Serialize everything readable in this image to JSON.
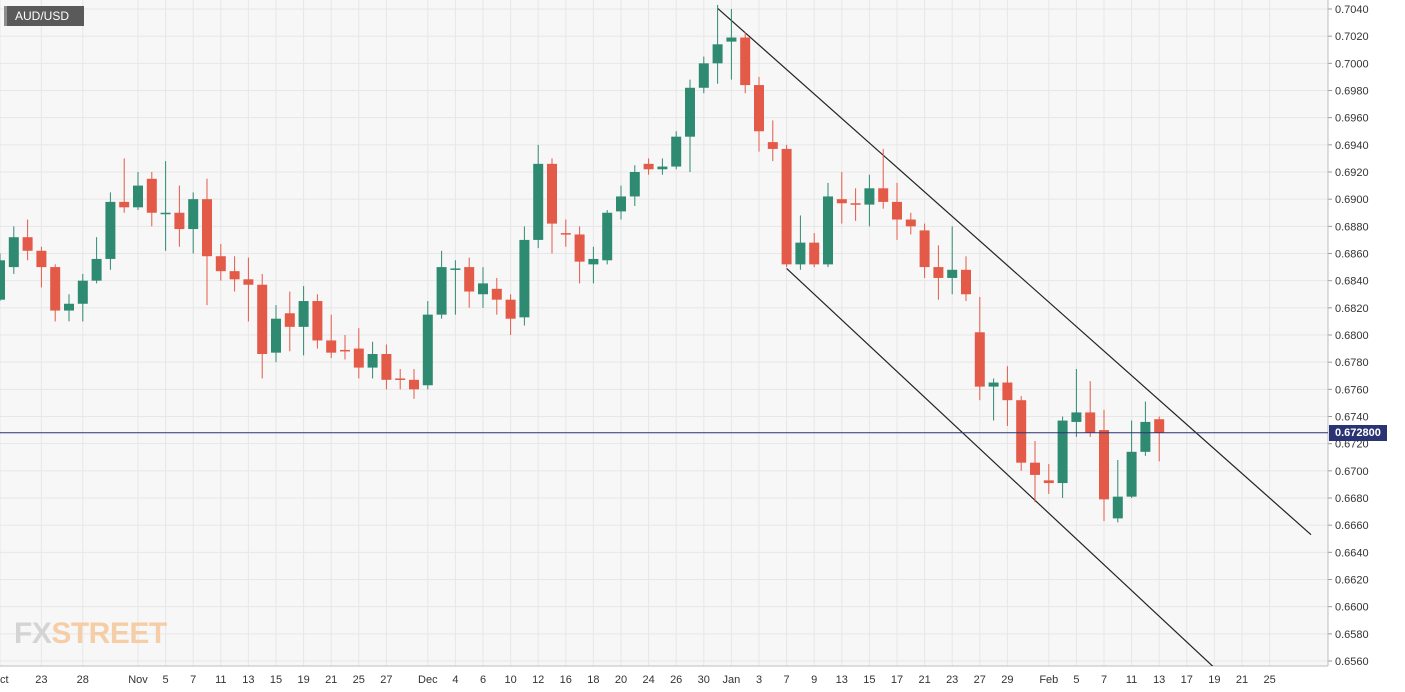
{
  "chart": {
    "symbol_label": "AUD/USD",
    "logo": {
      "fx": "FX",
      "street": "STREET"
    },
    "current_price_label": "0.672800"
  },
  "colors": {
    "up": "#2f8a72",
    "down": "#e35a48",
    "current_line": "#2a3472",
    "grid": "#e7e7e7",
    "plot_bg": "#f7f7f7",
    "axis_text": "#333333",
    "trendline": "#222222"
  },
  "chart_data": {
    "type": "candlestick",
    "ylim": [
      0.656,
      0.704
    ],
    "yticks": [
      "0.7040",
      "0.7020",
      "0.7000",
      "0.6980",
      "0.6960",
      "0.6940",
      "0.6920",
      "0.6900",
      "0.6880",
      "0.6860",
      "0.6840",
      "0.6820",
      "0.6800",
      "0.6780",
      "0.6760",
      "0.6740",
      "0.6720",
      "0.6700",
      "0.6680",
      "0.6660",
      "0.6640",
      "0.6620",
      "0.6600",
      "0.6580",
      "0.6560"
    ],
    "xticks": [
      {
        "label": "Oct",
        "index": 0
      },
      {
        "label": "23",
        "index": 3
      },
      {
        "label": "28",
        "index": 6
      },
      {
        "label": "Nov",
        "index": 10
      },
      {
        "label": "5",
        "index": 12
      },
      {
        "label": "7",
        "index": 14
      },
      {
        "label": "11",
        "index": 16
      },
      {
        "label": "13",
        "index": 18
      },
      {
        "label": "15",
        "index": 20
      },
      {
        "label": "19",
        "index": 22
      },
      {
        "label": "21",
        "index": 24
      },
      {
        "label": "25",
        "index": 26
      },
      {
        "label": "27",
        "index": 28
      },
      {
        "label": "Dec",
        "index": 31
      },
      {
        "label": "4",
        "index": 33
      },
      {
        "label": "6",
        "index": 35
      },
      {
        "label": "10",
        "index": 37
      },
      {
        "label": "12",
        "index": 39
      },
      {
        "label": "16",
        "index": 41
      },
      {
        "label": "18",
        "index": 43
      },
      {
        "label": "20",
        "index": 45
      },
      {
        "label": "24",
        "index": 47
      },
      {
        "label": "26",
        "index": 49
      },
      {
        "label": "30",
        "index": 51
      },
      {
        "label": "Jan",
        "index": 53
      },
      {
        "label": "3",
        "index": 55
      },
      {
        "label": "7",
        "index": 57
      },
      {
        "label": "9",
        "index": 59
      },
      {
        "label": "13",
        "index": 61
      },
      {
        "label": "15",
        "index": 63
      },
      {
        "label": "17",
        "index": 65
      },
      {
        "label": "21",
        "index": 67
      },
      {
        "label": "23",
        "index": 69
      },
      {
        "label": "27",
        "index": 71
      },
      {
        "label": "29",
        "index": 73
      },
      {
        "label": "Feb",
        "index": 76
      },
      {
        "label": "5",
        "index": 78
      },
      {
        "label": "7",
        "index": 80
      },
      {
        "label": "11",
        "index": 82
      },
      {
        "label": "13",
        "index": 84
      },
      {
        "label": "17",
        "index": 86
      },
      {
        "label": "19",
        "index": 88
      },
      {
        "label": "21",
        "index": 90
      },
      {
        "label": "25",
        "index": 92
      }
    ],
    "candles": [
      {
        "o": 0.6826,
        "h": 0.686,
        "l": 0.6825,
        "c": 0.6855
      },
      {
        "o": 0.685,
        "h": 0.688,
        "l": 0.6845,
        "c": 0.6872
      },
      {
        "o": 0.6872,
        "h": 0.6885,
        "l": 0.6855,
        "c": 0.6862
      },
      {
        "o": 0.6862,
        "h": 0.6865,
        "l": 0.6835,
        "c": 0.685
      },
      {
        "o": 0.685,
        "h": 0.6852,
        "l": 0.681,
        "c": 0.6818
      },
      {
        "o": 0.6818,
        "h": 0.683,
        "l": 0.681,
        "c": 0.6823
      },
      {
        "o": 0.6823,
        "h": 0.6845,
        "l": 0.681,
        "c": 0.684
      },
      {
        "o": 0.684,
        "h": 0.6872,
        "l": 0.6838,
        "c": 0.6856
      },
      {
        "o": 0.6856,
        "h": 0.6905,
        "l": 0.6848,
        "c": 0.6898
      },
      {
        "o": 0.6898,
        "h": 0.693,
        "l": 0.689,
        "c": 0.6894
      },
      {
        "o": 0.6894,
        "h": 0.692,
        "l": 0.6892,
        "c": 0.691
      },
      {
        "o": 0.6915,
        "h": 0.692,
        "l": 0.688,
        "c": 0.689
      },
      {
        "o": 0.689,
        "h": 0.6928,
        "l": 0.6862,
        "c": 0.689
      },
      {
        "o": 0.689,
        "h": 0.691,
        "l": 0.6865,
        "c": 0.6878
      },
      {
        "o": 0.6878,
        "h": 0.6905,
        "l": 0.686,
        "c": 0.69
      },
      {
        "o": 0.69,
        "h": 0.6915,
        "l": 0.6822,
        "c": 0.6858
      },
      {
        "o": 0.6858,
        "h": 0.6867,
        "l": 0.684,
        "c": 0.6847
      },
      {
        "o": 0.6847,
        "h": 0.6858,
        "l": 0.6832,
        "c": 0.6841
      },
      {
        "o": 0.6841,
        "h": 0.6857,
        "l": 0.681,
        "c": 0.6837
      },
      {
        "o": 0.6837,
        "h": 0.6845,
        "l": 0.6768,
        "c": 0.6786
      },
      {
        "o": 0.6787,
        "h": 0.6822,
        "l": 0.678,
        "c": 0.6812
      },
      {
        "o": 0.6816,
        "h": 0.6832,
        "l": 0.6788,
        "c": 0.6806
      },
      {
        "o": 0.6806,
        "h": 0.6836,
        "l": 0.6785,
        "c": 0.6825
      },
      {
        "o": 0.6825,
        "h": 0.683,
        "l": 0.679,
        "c": 0.6796
      },
      {
        "o": 0.6796,
        "h": 0.6815,
        "l": 0.6783,
        "c": 0.6787
      },
      {
        "o": 0.6789,
        "h": 0.68,
        "l": 0.6782,
        "c": 0.6788
      },
      {
        "o": 0.679,
        "h": 0.6805,
        "l": 0.6768,
        "c": 0.6776
      },
      {
        "o": 0.6776,
        "h": 0.6795,
        "l": 0.6768,
        "c": 0.6786
      },
      {
        "o": 0.6786,
        "h": 0.6793,
        "l": 0.676,
        "c": 0.6767
      },
      {
        "o": 0.6768,
        "h": 0.6775,
        "l": 0.676,
        "c": 0.6767
      },
      {
        "o": 0.6767,
        "h": 0.6775,
        "l": 0.6753,
        "c": 0.676
      },
      {
        "o": 0.6763,
        "h": 0.6825,
        "l": 0.676,
        "c": 0.6815
      },
      {
        "o": 0.6815,
        "h": 0.6862,
        "l": 0.6812,
        "c": 0.685
      },
      {
        "o": 0.6848,
        "h": 0.6855,
        "l": 0.6815,
        "c": 0.6849
      },
      {
        "o": 0.685,
        "h": 0.6857,
        "l": 0.682,
        "c": 0.6832
      },
      {
        "o": 0.683,
        "h": 0.685,
        "l": 0.682,
        "c": 0.6838
      },
      {
        "o": 0.6834,
        "h": 0.6842,
        "l": 0.6815,
        "c": 0.6826
      },
      {
        "o": 0.6826,
        "h": 0.683,
        "l": 0.68,
        "c": 0.6812
      },
      {
        "o": 0.6813,
        "h": 0.688,
        "l": 0.6807,
        "c": 0.687
      },
      {
        "o": 0.687,
        "h": 0.694,
        "l": 0.6864,
        "c": 0.6926
      },
      {
        "o": 0.6926,
        "h": 0.693,
        "l": 0.686,
        "c": 0.6882
      },
      {
        "o": 0.6875,
        "h": 0.6885,
        "l": 0.6865,
        "c": 0.6874
      },
      {
        "o": 0.6874,
        "h": 0.688,
        "l": 0.6838,
        "c": 0.6854
      },
      {
        "o": 0.6852,
        "h": 0.6865,
        "l": 0.6838,
        "c": 0.6856
      },
      {
        "o": 0.6855,
        "h": 0.6892,
        "l": 0.6852,
        "c": 0.689
      },
      {
        "o": 0.6891,
        "h": 0.691,
        "l": 0.6885,
        "c": 0.6902
      },
      {
        "o": 0.6902,
        "h": 0.6925,
        "l": 0.6895,
        "c": 0.692
      },
      {
        "o": 0.6926,
        "h": 0.693,
        "l": 0.6918,
        "c": 0.6922
      },
      {
        "o": 0.6922,
        "h": 0.693,
        "l": 0.6918,
        "c": 0.6924
      },
      {
        "o": 0.6924,
        "h": 0.695,
        "l": 0.6922,
        "c": 0.6946
      },
      {
        "o": 0.6946,
        "h": 0.6988,
        "l": 0.692,
        "c": 0.6982
      },
      {
        "o": 0.6982,
        "h": 0.7005,
        "l": 0.6978,
        "c": 0.7
      },
      {
        "o": 0.7,
        "h": 0.7043,
        "l": 0.6985,
        "c": 0.7014
      },
      {
        "o": 0.7016,
        "h": 0.704,
        "l": 0.6988,
        "c": 0.7019
      },
      {
        "o": 0.7019,
        "h": 0.7023,
        "l": 0.6978,
        "c": 0.6984
      },
      {
        "o": 0.6984,
        "h": 0.699,
        "l": 0.6935,
        "c": 0.695
      },
      {
        "o": 0.6942,
        "h": 0.6958,
        "l": 0.6928,
        "c": 0.6937
      },
      {
        "o": 0.6937,
        "h": 0.694,
        "l": 0.685,
        "c": 0.6852
      },
      {
        "o": 0.6852,
        "h": 0.6888,
        "l": 0.6848,
        "c": 0.6868
      },
      {
        "o": 0.6868,
        "h": 0.6875,
        "l": 0.685,
        "c": 0.6852
      },
      {
        "o": 0.6852,
        "h": 0.6912,
        "l": 0.685,
        "c": 0.6902
      },
      {
        "o": 0.69,
        "h": 0.692,
        "l": 0.6882,
        "c": 0.6897
      },
      {
        "o": 0.6897,
        "h": 0.6908,
        "l": 0.6884,
        "c": 0.6896
      },
      {
        "o": 0.6896,
        "h": 0.6918,
        "l": 0.688,
        "c": 0.6908
      },
      {
        "o": 0.6908,
        "h": 0.6937,
        "l": 0.6893,
        "c": 0.6898
      },
      {
        "o": 0.6898,
        "h": 0.6912,
        "l": 0.687,
        "c": 0.6885
      },
      {
        "o": 0.6885,
        "h": 0.689,
        "l": 0.6874,
        "c": 0.688
      },
      {
        "o": 0.6877,
        "h": 0.6882,
        "l": 0.6842,
        "c": 0.685
      },
      {
        "o": 0.685,
        "h": 0.6866,
        "l": 0.6826,
        "c": 0.6842
      },
      {
        "o": 0.6842,
        "h": 0.688,
        "l": 0.683,
        "c": 0.6848
      },
      {
        "o": 0.6848,
        "h": 0.6858,
        "l": 0.6825,
        "c": 0.683
      },
      {
        "o": 0.6802,
        "h": 0.6828,
        "l": 0.6752,
        "c": 0.6762
      },
      {
        "o": 0.6762,
        "h": 0.6768,
        "l": 0.6737,
        "c": 0.6765
      },
      {
        "o": 0.6765,
        "h": 0.6777,
        "l": 0.6733,
        "c": 0.6752
      },
      {
        "o": 0.6752,
        "h": 0.6755,
        "l": 0.67,
        "c": 0.6706
      },
      {
        "o": 0.6706,
        "h": 0.6722,
        "l": 0.6677,
        "c": 0.6697
      },
      {
        "o": 0.6693,
        "h": 0.6705,
        "l": 0.6683,
        "c": 0.6691
      },
      {
        "o": 0.6691,
        "h": 0.674,
        "l": 0.668,
        "c": 0.6737
      },
      {
        "o": 0.6736,
        "h": 0.6775,
        "l": 0.6725,
        "c": 0.6743
      },
      {
        "o": 0.6743,
        "h": 0.6766,
        "l": 0.6725,
        "c": 0.6728
      },
      {
        "o": 0.673,
        "h": 0.6745,
        "l": 0.6663,
        "c": 0.6679
      },
      {
        "o": 0.6665,
        "h": 0.6708,
        "l": 0.6662,
        "c": 0.6681
      },
      {
        "o": 0.6681,
        "h": 0.6737,
        "l": 0.668,
        "c": 0.6714
      },
      {
        "o": 0.6714,
        "h": 0.6751,
        "l": 0.6711,
        "c": 0.6736
      },
      {
        "o": 0.6738,
        "h": 0.674,
        "l": 0.6707,
        "c": 0.6728
      }
    ],
    "trendlines": [
      {
        "from": {
          "index": 52,
          "price": 0.70405
        },
        "to": {
          "index": 95,
          "price": 0.6653
        }
      },
      {
        "from": {
          "index": 57,
          "price": 0.6849
        },
        "to": {
          "index": 88,
          "price": 0.6555
        }
      }
    ],
    "current_price": 0.6728,
    "grid": true
  }
}
